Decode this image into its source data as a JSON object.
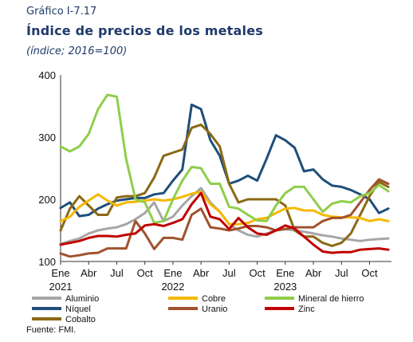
{
  "header": {
    "label": "Gráfico I-7.17",
    "title": "Índice de precios de los metales",
    "subtitle": "(índice; 2016=100)"
  },
  "source": "Fuente: FMI.",
  "chart_data": {
    "type": "line",
    "title": "Índice de precios de los metales",
    "subtitle": "(índice; 2016=100)",
    "xlabel": "",
    "ylabel": "",
    "ylim": [
      100,
      400
    ],
    "yticks": [
      100,
      200,
      300,
      400
    ],
    "grid": false,
    "legend_position": "bottom",
    "x": [
      "Ene 2021",
      "Feb 2021",
      "Mar 2021",
      "Abr 2021",
      "May 2021",
      "Jun 2021",
      "Jul 2021",
      "Ago 2021",
      "Sep 2021",
      "Oct 2021",
      "Nov 2021",
      "Dic 2021",
      "Ene 2022",
      "Feb 2022",
      "Mar 2022",
      "Abr 2022",
      "May 2022",
      "Jun 2022",
      "Jul 2022",
      "Ago 2022",
      "Sep 2022",
      "Oct 2022",
      "Nov 2022",
      "Dic 2022",
      "Ene 2023",
      "Feb 2023",
      "Mar 2023",
      "Abr 2023",
      "May 2023",
      "Jun 2023",
      "Jul 2023",
      "Ago 2023",
      "Sep 2023",
      "Oct 2023",
      "Nov 2023",
      "Dic 2023"
    ],
    "x_tick_labels": [
      {
        "index": 0,
        "month": "Ene",
        "year": "2021"
      },
      {
        "index": 3,
        "month": "Abr",
        "year": ""
      },
      {
        "index": 6,
        "month": "Jul",
        "year": ""
      },
      {
        "index": 9,
        "month": "Oct",
        "year": ""
      },
      {
        "index": 12,
        "month": "Ene",
        "year": "2022"
      },
      {
        "index": 15,
        "month": "Abr",
        "year": ""
      },
      {
        "index": 18,
        "month": "Jul",
        "year": ""
      },
      {
        "index": 21,
        "month": "Oct",
        "year": ""
      },
      {
        "index": 24,
        "month": "Ene",
        "year": "2023"
      },
      {
        "index": 27,
        "month": "Abr",
        "year": ""
      },
      {
        "index": 30,
        "month": "Jul",
        "year": ""
      },
      {
        "index": 33,
        "month": "Oct",
        "year": ""
      }
    ],
    "series": [
      {
        "name": "Aluminio",
        "color": "#a6a6a6",
        "values": [
          128,
          133,
          137,
          145,
          150,
          153,
          155,
          160,
          168,
          178,
          195,
          165,
          172,
          190,
          205,
          218,
          195,
          180,
          160,
          150,
          143,
          140,
          145,
          150,
          152,
          150,
          148,
          145,
          142,
          140,
          137,
          135,
          133,
          135,
          136,
          137
        ]
      },
      {
        "name": "Níquel",
        "color": "#1f4e79",
        "values": [
          186,
          195,
          173,
          175,
          185,
          192,
          198,
          200,
          202,
          202,
          208,
          210,
          230,
          248,
          352,
          345,
          295,
          270,
          225,
          230,
          238,
          230,
          265,
          303,
          295,
          283,
          245,
          248,
          232,
          222,
          220,
          215,
          208,
          200,
          178,
          185
        ]
      },
      {
        "name": "Cobalto",
        "color": "#8b6914",
        "values": [
          150,
          185,
          205,
          190,
          175,
          175,
          203,
          205,
          205,
          210,
          235,
          270,
          275,
          280,
          315,
          320,
          305,
          285,
          225,
          195,
          200,
          200,
          200,
          200,
          190,
          150,
          140,
          140,
          130,
          125,
          130,
          145,
          175,
          205,
          228,
          220
        ]
      },
      {
        "name": "Cobre",
        "color": "#f5b800",
        "values": [
          165,
          172,
          188,
          198,
          208,
          198,
          190,
          195,
          196,
          198,
          200,
          198,
          200,
          204,
          209,
          212,
          192,
          180,
          160,
          160,
          162,
          168,
          170,
          178,
          185,
          186,
          182,
          182,
          175,
          172,
          171,
          171,
          170,
          165,
          168,
          165
        ]
      },
      {
        "name": "Uranio",
        "color": "#a0522d",
        "values": [
          113,
          108,
          110,
          113,
          114,
          121,
          121,
          121,
          165,
          145,
          120,
          138,
          138,
          135,
          175,
          185,
          155,
          153,
          150,
          153,
          157,
          157,
          155,
          150,
          152,
          155,
          155,
          155,
          165,
          170,
          170,
          175,
          195,
          215,
          232,
          225
        ]
      },
      {
        "name": "Mineral de hierro",
        "color": "#8fce4a",
        "values": [
          285,
          277,
          285,
          305,
          345,
          368,
          365,
          265,
          200,
          195,
          162,
          165,
          200,
          230,
          252,
          250,
          225,
          225,
          188,
          185,
          175,
          166,
          165,
          190,
          210,
          220,
          220,
          200,
          180,
          193,
          197,
          195,
          205,
          210,
          223,
          213
        ]
      },
      {
        "name": "Zinc",
        "color": "#c00000",
        "values": [
          127,
          130,
          133,
          138,
          141,
          141,
          140,
          143,
          145,
          158,
          160,
          157,
          162,
          168,
          192,
          210,
          172,
          168,
          152,
          170,
          155,
          145,
          143,
          150,
          158,
          153,
          140,
          127,
          116,
          114,
          115,
          115,
          119,
          120,
          121,
          119
        ]
      }
    ]
  }
}
